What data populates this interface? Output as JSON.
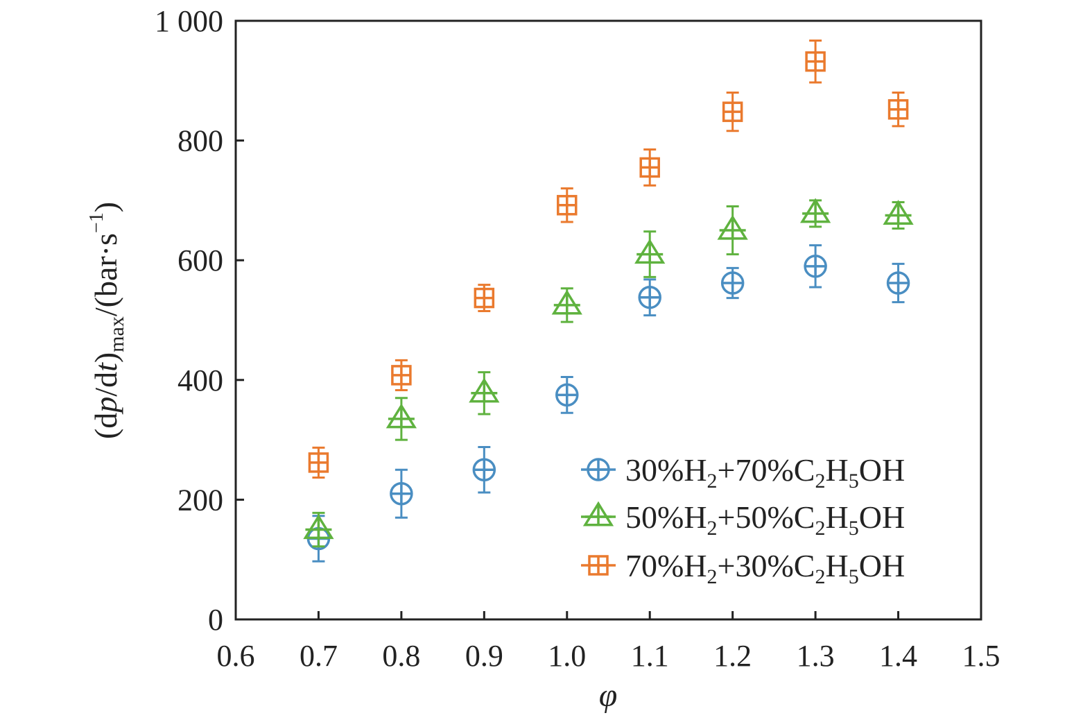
{
  "chart_data": {
    "type": "scatter",
    "title": "",
    "xlabel": "φ",
    "ylabel": {
      "pre": "(d",
      "p": "p",
      "mid": "/d",
      "t": "t",
      "close": ")",
      "sub": "max",
      "unit": "/(bar·s",
      "sup": "−1",
      "end": ")"
    },
    "xlim": [
      0.6,
      1.5
    ],
    "ylim": [
      0,
      1000
    ],
    "xticks": [
      0.6,
      0.7,
      0.8,
      0.9,
      1.0,
      1.1,
      1.2,
      1.3,
      1.4,
      1.5
    ],
    "xtick_labels": [
      "0.6",
      "0.7",
      "0.8",
      "0.9",
      "1.0",
      "1.1",
      "1.2",
      "1.3",
      "1.4",
      "1.5"
    ],
    "yticks": [
      0,
      200,
      400,
      600,
      800,
      1000
    ],
    "ytick_labels": [
      "0",
      "200",
      "400",
      "600",
      "800",
      "1 000"
    ],
    "grid": false,
    "legend_position": "bottom-right",
    "series": [
      {
        "name": "30%H2+70%C2H5OH",
        "legend_parts": [
          [
            "30%H",
            "n"
          ],
          [
            "2",
            "sub"
          ],
          [
            "+70%C",
            "n"
          ],
          [
            "2",
            "sub"
          ],
          [
            "H",
            "n"
          ],
          [
            "5",
            "sub"
          ],
          [
            "OH",
            "n"
          ]
        ],
        "marker": "circle-plus",
        "color": "#4a8ec2",
        "x": [
          0.7,
          0.8,
          0.9,
          1.0,
          1.1,
          1.2,
          1.3,
          1.4
        ],
        "y": [
          135,
          210,
          250,
          375,
          538,
          562,
          590,
          562
        ],
        "err": [
          38,
          40,
          38,
          30,
          30,
          25,
          35,
          32
        ]
      },
      {
        "name": "50%H2+50%C2H5OH",
        "legend_parts": [
          [
            "50%H",
            "n"
          ],
          [
            "2",
            "sub"
          ],
          [
            "+50%C",
            "n"
          ],
          [
            "2",
            "sub"
          ],
          [
            "H",
            "n"
          ],
          [
            "5",
            "sub"
          ],
          [
            "OH",
            "n"
          ]
        ],
        "marker": "triangle-plus",
        "color": "#5fb23f",
        "x": [
          0.7,
          0.8,
          0.9,
          1.0,
          1.1,
          1.2,
          1.3,
          1.4
        ],
        "y": [
          150,
          335,
          378,
          525,
          610,
          650,
          678,
          675
        ],
        "err": [
          28,
          35,
          35,
          28,
          38,
          40,
          22,
          22
        ]
      },
      {
        "name": "70%H2+30%C2H5OH",
        "legend_parts": [
          [
            "70%H",
            "n"
          ],
          [
            "2",
            "sub"
          ],
          [
            "+30%C",
            "n"
          ],
          [
            "2",
            "sub"
          ],
          [
            "H",
            "n"
          ],
          [
            "5",
            "sub"
          ],
          [
            "OH",
            "n"
          ]
        ],
        "marker": "square-plus",
        "color": "#ea7a2e",
        "x": [
          0.7,
          0.8,
          0.9,
          1.0,
          1.1,
          1.2,
          1.3,
          1.4
        ],
        "y": [
          262,
          408,
          537,
          692,
          755,
          848,
          932,
          852
        ],
        "err": [
          25,
          25,
          22,
          28,
          30,
          32,
          35,
          28
        ]
      }
    ]
  }
}
